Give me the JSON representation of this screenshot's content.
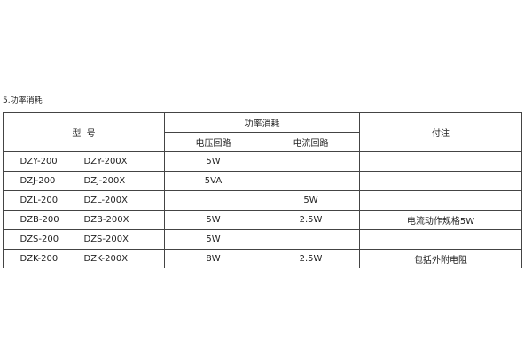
{
  "title": "5.功率消耗",
  "headers": {
    "model": "型  号",
    "power": "功率消耗",
    "voltage": "电压回路",
    "current": "电流回路",
    "note": "付注"
  },
  "rows": [
    {
      "model_a": "DZY-200",
      "model_b": "DZY-200X",
      "voltage": "5W",
      "current": "",
      "note": ""
    },
    {
      "model_a": "DZJ-200",
      "model_b": "DZJ-200X",
      "voltage": "5VA",
      "current": "",
      "note": ""
    },
    {
      "model_a": "DZL-200",
      "model_b": "DZL-200X",
      "voltage": "",
      "current": "5W",
      "note": ""
    },
    {
      "model_a": "DZB-200",
      "model_b": "DZB-200X",
      "voltage": "5W",
      "current": "2.5W",
      "note": "电流动作规格5W"
    },
    {
      "model_a": "DZS-200",
      "model_b": "DZS-200X",
      "voltage": "5W",
      "current": "",
      "note": ""
    },
    {
      "model_a": "DZK-200",
      "model_b": "DZK-200X",
      "voltage": "8W",
      "current": "2.5W",
      "note": "包括外附电阻"
    }
  ]
}
